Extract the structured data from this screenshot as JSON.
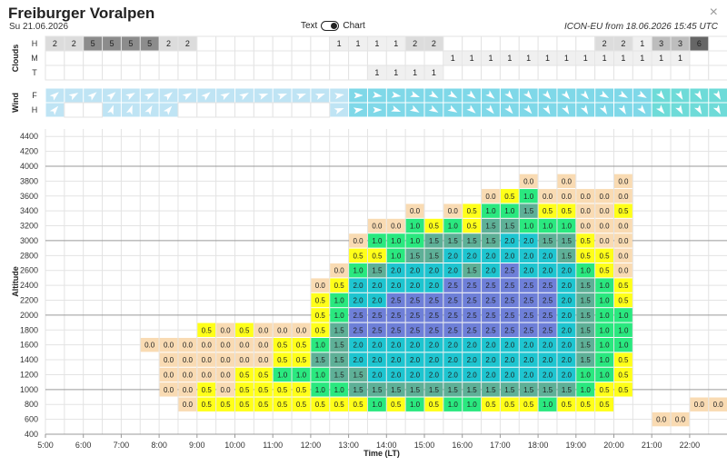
{
  "header": {
    "title": "Freiburger Voralpen",
    "date": "Su 21.06.2026",
    "toggle_text": "Text",
    "toggle_chart": "Chart",
    "model": "ICON-EU from 18.06.2026 15:45 UTC",
    "close": "×"
  },
  "chart_data": {
    "type": "heatmap",
    "xlabel": "Time (LT)",
    "ylabel": "Altitude",
    "x_ticks": [
      "5:00",
      "6:00",
      "7:00",
      "8:00",
      "9:00",
      "10:00",
      "11:00",
      "12:00",
      "13:00",
      "14:00",
      "15:00",
      "16:00",
      "17:00",
      "18:00",
      "19:00",
      "20:00",
      "21:00",
      "22:00"
    ],
    "y_ticks": [
      400,
      600,
      800,
      1000,
      1200,
      1400,
      1600,
      1800,
      2000,
      2200,
      2400,
      2600,
      2800,
      3000,
      3200,
      3400,
      3600,
      3800,
      4000,
      4200,
      4400
    ],
    "ylim": [
      400,
      4500
    ],
    "xlim": [
      "5:00",
      "22:30"
    ],
    "highlight_lines": [
      1000,
      2000,
      3000,
      4000
    ],
    "slot_minutes": 30,
    "slots": [
      "5:00",
      "5:30",
      "6:00",
      "6:30",
      "7:00",
      "7:30",
      "8:00",
      "8:30",
      "9:00",
      "9:30",
      "10:00",
      "10:30",
      "11:00",
      "11:30",
      "12:00",
      "12:30",
      "13:00",
      "13:30",
      "14:00",
      "14:30",
      "15:00",
      "15:30",
      "16:00",
      "16:30",
      "17:00",
      "17:30",
      "18:00",
      "18:30",
      "19:00",
      "19:30",
      "20:00",
      "20:30",
      "21:00",
      "21:30",
      "22:00",
      "22:30"
    ],
    "cells": [
      {
        "slot": "7:30",
        "values": {
          "1600": "0.0"
        }
      },
      {
        "slot": "8:00",
        "values": {
          "1000": "0.0",
          "1200": "0.0",
          "1400": "0.0",
          "1600": "0.0"
        }
      },
      {
        "slot": "8:30",
        "values": {
          "800": "0.0",
          "1000": "0.0",
          "1200": "0.0",
          "1400": "0.0",
          "1600": "0.0"
        }
      },
      {
        "slot": "9:00",
        "values": {
          "800": "0.5",
          "1000": "0.5",
          "1200": "0.0",
          "1400": "0.0",
          "1600": "0.0",
          "1800": "0.5"
        }
      },
      {
        "slot": "9:30",
        "values": {
          "800": "0.5",
          "1000": "0.0",
          "1200": "0.0",
          "1400": "0.0",
          "1600": "0.0",
          "1800": "0.0"
        }
      },
      {
        "slot": "10:00",
        "values": {
          "800": "0.5",
          "1000": "0.5",
          "1200": "0.5",
          "1400": "0.0",
          "1600": "0.0",
          "1800": "0.5"
        }
      },
      {
        "slot": "10:30",
        "values": {
          "800": "0.5",
          "1000": "0.5",
          "1200": "0.5",
          "1400": "0.0",
          "1600": "0.0",
          "1800": "0.0"
        }
      },
      {
        "slot": "11:00",
        "values": {
          "800": "0.5",
          "1000": "0.5",
          "1200": "1.0",
          "1400": "0.5",
          "1600": "0.5",
          "1800": "0.0"
        }
      },
      {
        "slot": "11:30",
        "values": {
          "800": "0.5",
          "1000": "0.5",
          "1200": "1.0",
          "1400": "0.5",
          "1600": "0.5",
          "1800": "0.0"
        }
      },
      {
        "slot": "12:00",
        "values": {
          "800": "0.5",
          "1000": "1.0",
          "1200": "1.0",
          "1400": "1.5",
          "1600": "1.0",
          "1800": "0.5",
          "2000": "0.5",
          "2200": "0.5",
          "2400": "0.0"
        }
      },
      {
        "slot": "12:30",
        "values": {
          "800": "0.5",
          "1000": "1.0",
          "1200": "1.5",
          "1400": "1.5",
          "1600": "1.5",
          "1800": "1.5",
          "2000": "1.0",
          "2200": "1.0",
          "2400": "0.5",
          "2600": "0.0"
        }
      },
      {
        "slot": "13:00",
        "values": {
          "800": "0.5",
          "1000": "1.5",
          "1200": "1.5",
          "1400": "2.0",
          "1600": "2.0",
          "1800": "2.5",
          "2000": "2.5",
          "2200": "2.0",
          "2400": "2.0",
          "2600": "1.0",
          "2800": "0.5",
          "3000": "0.0"
        }
      },
      {
        "slot": "13:30",
        "values": {
          "800": "1.0",
          "1000": "1.5",
          "1200": "2.0",
          "1400": "2.0",
          "1600": "2.0",
          "1800": "2.5",
          "2000": "2.5",
          "2200": "2.0",
          "2400": "2.0",
          "2600": "1.5",
          "2800": "0.5",
          "3000": "1.0",
          "3200": "0.0"
        }
      },
      {
        "slot": "14:00",
        "values": {
          "800": "0.5",
          "1000": "1.5",
          "1200": "2.0",
          "1400": "2.0",
          "1600": "2.0",
          "1800": "2.5",
          "2000": "2.5",
          "2200": "2.5",
          "2400": "2.0",
          "2600": "2.0",
          "2800": "1.0",
          "3000": "1.0",
          "3200": "0.0"
        }
      },
      {
        "slot": "14:30",
        "values": {
          "800": "1.0",
          "1000": "1.5",
          "1200": "2.0",
          "1400": "2.0",
          "1600": "2.0",
          "1800": "2.5",
          "2000": "2.5",
          "2200": "2.5",
          "2400": "2.0",
          "2600": "2.0",
          "2800": "1.5",
          "3000": "1.0",
          "3200": "1.0",
          "3400": "0.0"
        }
      },
      {
        "slot": "15:00",
        "values": {
          "800": "0.5",
          "1000": "1.5",
          "1200": "2.0",
          "1400": "2.0",
          "1600": "2.0",
          "1800": "2.5",
          "2000": "2.5",
          "2200": "2.5",
          "2400": "2.0",
          "2600": "2.0",
          "2800": "1.5",
          "3000": "1.5",
          "3200": "0.5"
        }
      },
      {
        "slot": "15:30",
        "values": {
          "800": "1.0",
          "1000": "1.5",
          "1200": "2.0",
          "1400": "2.0",
          "1600": "2.0",
          "1800": "2.5",
          "2000": "2.5",
          "2200": "2.5",
          "2400": "2.5",
          "2600": "2.0",
          "2800": "2.0",
          "3000": "1.5",
          "3200": "1.0",
          "3400": "0.0"
        }
      },
      {
        "slot": "16:00",
        "values": {
          "800": "1.0",
          "1000": "1.5",
          "1200": "2.0",
          "1400": "2.0",
          "1600": "2.0",
          "1800": "2.5",
          "2000": "2.5",
          "2200": "2.5",
          "2400": "2.5",
          "2600": "1.5",
          "2800": "2.0",
          "3000": "1.5",
          "3200": "0.5",
          "3400": "0.5"
        }
      },
      {
        "slot": "16:30",
        "values": {
          "800": "0.5",
          "1000": "1.5",
          "1200": "2.0",
          "1400": "2.0",
          "1600": "2.0",
          "1800": "2.5",
          "2000": "2.5",
          "2200": "2.5",
          "2400": "2.5",
          "2600": "2.0",
          "2800": "2.0",
          "3000": "1.5",
          "3200": "1.5",
          "3400": "1.0",
          "3600": "0.0"
        }
      },
      {
        "slot": "17:00",
        "values": {
          "800": "0.5",
          "1000": "1.5",
          "1200": "2.0",
          "1400": "2.0",
          "1600": "2.0",
          "1800": "2.5",
          "2000": "2.5",
          "2200": "2.5",
          "2400": "2.5",
          "2600": "2.5",
          "2800": "2.0",
          "3000": "2.0",
          "3200": "1.5",
          "3400": "1.0",
          "3600": "0.5"
        }
      },
      {
        "slot": "17:30",
        "values": {
          "800": "0.5",
          "1000": "1.5",
          "1200": "2.0",
          "1400": "2.0",
          "1600": "2.0",
          "1800": "2.5",
          "2000": "2.5",
          "2200": "2.5",
          "2400": "2.5",
          "2600": "2.0",
          "2800": "2.0",
          "3000": "2.0",
          "3200": "1.0",
          "3400": "1.5",
          "3600": "1.0",
          "3800": "0.0"
        }
      },
      {
        "slot": "18:00",
        "values": {
          "800": "1.0",
          "1000": "1.5",
          "1200": "2.0",
          "1400": "2.0",
          "1600": "2.0",
          "1800": "2.5",
          "2000": "2.5",
          "2200": "2.5",
          "2400": "2.5",
          "2600": "2.0",
          "2800": "2.0",
          "3000": "1.5",
          "3200": "1.0",
          "3400": "0.5",
          "3600": "0.0"
        }
      },
      {
        "slot": "18:30",
        "values": {
          "800": "0.5",
          "1000": "1.5",
          "1200": "2.0",
          "1400": "2.0",
          "1600": "2.0",
          "1800": "2.0",
          "2000": "2.0",
          "2200": "2.0",
          "2400": "2.0",
          "2600": "2.0",
          "2800": "1.5",
          "3000": "1.5",
          "3200": "1.0",
          "3400": "0.5",
          "3600": "0.0",
          "3800": "0.0"
        }
      },
      {
        "slot": "19:00",
        "values": {
          "800": "0.5",
          "1000": "1.0",
          "1200": "1.0",
          "1400": "1.5",
          "1600": "1.5",
          "1800": "1.5",
          "2000": "1.5",
          "2200": "1.5",
          "2400": "1.5",
          "2600": "1.0",
          "2800": "0.5",
          "3000": "0.5",
          "3200": "0.0",
          "3400": "0.0",
          "3600": "0.0"
        }
      },
      {
        "slot": "19:30",
        "values": {
          "800": "0.5",
          "1000": "0.5",
          "1200": "1.0",
          "1400": "1.0",
          "1600": "1.0",
          "1800": "1.0",
          "2000": "1.0",
          "2200": "1.0",
          "2400": "1.0",
          "2600": "0.5",
          "2800": "0.5",
          "3000": "0.0",
          "3200": "0.0",
          "3400": "0.0",
          "3600": "0.0"
        }
      },
      {
        "slot": "20:00",
        "values": {
          "1000": "0.5",
          "1200": "0.5",
          "1400": "0.5",
          "1600": "1.0",
          "1800": "1.0",
          "2000": "1.0",
          "2200": "0.5",
          "2400": "0.5",
          "2600": "0.0",
          "2800": "0.0",
          "3000": "0.0",
          "3200": "0.0",
          "3400": "0.5",
          "3600": "0.0",
          "3800": "0.0"
        }
      },
      {
        "slot": "21:00",
        "values": {
          "600": "0.0"
        }
      },
      {
        "slot": "21:30",
        "values": {
          "600": "0.0"
        }
      },
      {
        "slot": "22:00",
        "values": {
          "800": "0.0"
        }
      },
      {
        "slot": "22:30",
        "values": {
          "800": "0.0"
        }
      }
    ],
    "value_colors": {
      "0.0": "#f9dbb3",
      "0.5": "#ffff19",
      "1.0": "#2ae87f",
      "1.5": "#5eb097",
      "2.0": "#1ec5d0",
      "2.5": "#6e7fd8"
    }
  },
  "clouds": {
    "section_label": "Clouds",
    "row_labels": [
      "H",
      "M",
      "T"
    ],
    "rows": {
      "H": [
        {
          "slot": "5:00",
          "v": "2"
        },
        {
          "slot": "5:30",
          "v": "2"
        },
        {
          "slot": "6:00",
          "v": "5"
        },
        {
          "slot": "6:30",
          "v": "5"
        },
        {
          "slot": "7:00",
          "v": "5"
        },
        {
          "slot": "7:30",
          "v": "5"
        },
        {
          "slot": "8:00",
          "v": "2"
        },
        {
          "slot": "8:30",
          "v": "2"
        },
        {
          "slot": "12:30",
          "v": "1"
        },
        {
          "slot": "13:00",
          "v": "1"
        },
        {
          "slot": "13:30",
          "v": "1"
        },
        {
          "slot": "14:00",
          "v": "1"
        },
        {
          "slot": "14:30",
          "v": "2"
        },
        {
          "slot": "15:00",
          "v": "2"
        },
        {
          "slot": "19:30",
          "v": "2"
        },
        {
          "slot": "20:00",
          "v": "2"
        },
        {
          "slot": "20:30",
          "v": "1"
        },
        {
          "slot": "21:00",
          "v": "3"
        },
        {
          "slot": "21:30",
          "v": "3"
        },
        {
          "slot": "22:00",
          "v": "6"
        }
      ],
      "M": [
        {
          "slot": "15:30",
          "v": "1"
        },
        {
          "slot": "16:00",
          "v": "1"
        },
        {
          "slot": "16:30",
          "v": "1"
        },
        {
          "slot": "17:00",
          "v": "1"
        },
        {
          "slot": "17:30",
          "v": "1"
        },
        {
          "slot": "18:00",
          "v": "1"
        },
        {
          "slot": "18:30",
          "v": "1"
        },
        {
          "slot": "19:00",
          "v": "1"
        },
        {
          "slot": "19:30",
          "v": "1"
        },
        {
          "slot": "20:00",
          "v": "1"
        },
        {
          "slot": "20:30",
          "v": "1"
        },
        {
          "slot": "21:00",
          "v": "1"
        },
        {
          "slot": "21:30",
          "v": "1"
        }
      ],
      "T": [
        {
          "slot": "13:30",
          "v": "1"
        },
        {
          "slot": "14:00",
          "v": "1"
        },
        {
          "slot": "14:30",
          "v": "1"
        },
        {
          "slot": "15:00",
          "v": "1"
        }
      ]
    },
    "level_colors": {
      "1": "#f0f0f0",
      "2": "#dcdcdc",
      "3": "#bdbdbd",
      "5": "#8c8c8c",
      "6": "#666666"
    }
  },
  "wind": {
    "section_label": "Wind",
    "row_labels": [
      "F",
      "H"
    ],
    "rows": {
      "F": {
        "direction_deg": [
          230,
          240,
          230,
          230,
          240,
          240,
          230,
          240,
          230,
          240,
          240,
          250,
          250,
          250,
          250,
          260,
          270,
          280,
          280,
          290,
          300,
          300,
          310,
          310,
          320,
          320,
          320,
          320,
          320,
          300,
          300,
          300,
          320,
          330,
          330,
          330
        ],
        "strength": [
          0.3,
          0.3,
          0.3,
          0.3,
          0.3,
          0.3,
          0.3,
          0.3,
          0.3,
          0.3,
          0.3,
          0.3,
          0.3,
          0.3,
          0.3,
          0.3,
          0.6,
          0.6,
          0.6,
          0.6,
          0.6,
          0.6,
          0.6,
          0.6,
          0.6,
          0.6,
          0.6,
          0.6,
          0.6,
          0.6,
          0.6,
          0.6,
          0.8,
          0.8,
          0.8,
          0.8
        ]
      },
      "H": {
        "direction_deg": [
          220,
          null,
          null,
          200,
          200,
          210,
          220,
          null,
          null,
          null,
          null,
          null,
          null,
          null,
          null,
          250,
          260,
          270,
          290,
          300,
          300,
          300,
          310,
          320,
          320,
          320,
          330,
          330,
          330,
          330,
          330,
          320,
          320,
          330,
          330,
          330
        ],
        "strength": [
          0.2,
          null,
          null,
          0.2,
          0.2,
          0.2,
          0.2,
          null,
          null,
          null,
          null,
          null,
          null,
          null,
          null,
          0.2,
          0.5,
          0.5,
          0.5,
          0.5,
          0.5,
          0.5,
          0.5,
          0.5,
          0.5,
          0.5,
          0.5,
          0.5,
          0.5,
          0.5,
          0.5,
          0.5,
          0.7,
          0.7,
          0.7,
          0.7
        ]
      }
    },
    "strength_colors": {
      "low": "#bfe4f4",
      "mid": "#7fd8e8",
      "high": "#6edbd8"
    }
  }
}
